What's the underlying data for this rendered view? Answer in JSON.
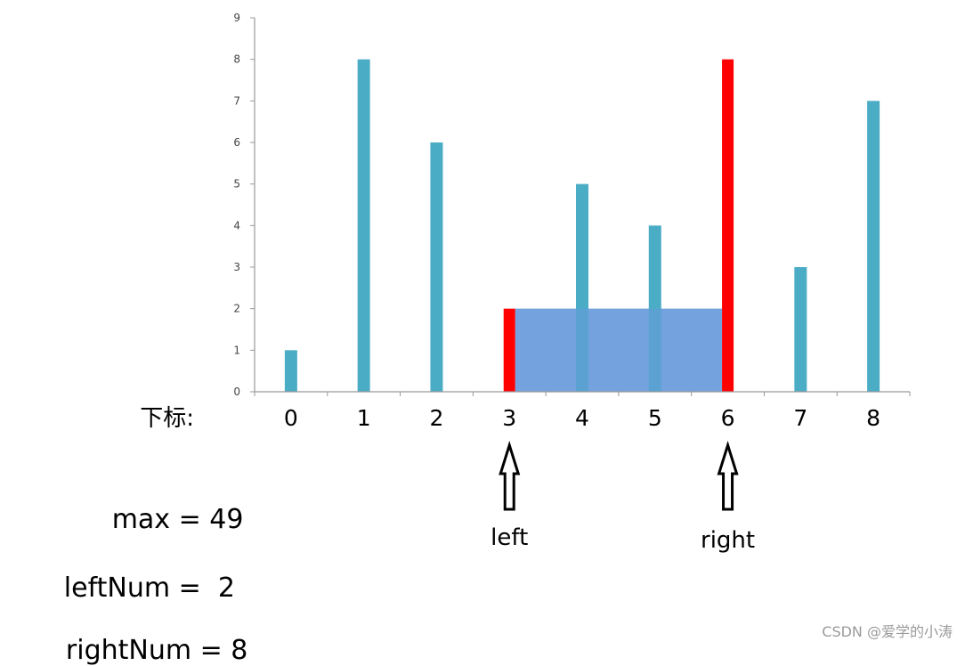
{
  "chart_data": {
    "type": "bar",
    "categories": [
      "0",
      "1",
      "2",
      "3",
      "4",
      "5",
      "6",
      "7",
      "8"
    ],
    "values": [
      1,
      8,
      6,
      2,
      5,
      4,
      8,
      3,
      7
    ],
    "highlighted_indices": [
      3,
      6
    ],
    "area": {
      "from_index": 3,
      "to_index": 6,
      "height": 2
    },
    "ylim": [
      0,
      9
    ],
    "yticks": [
      "0",
      "1",
      "2",
      "3",
      "4",
      "5",
      "6",
      "7",
      "8",
      "9"
    ],
    "xlabel": "下标:",
    "ylabel": "",
    "title": "",
    "grid": false,
    "colors": {
      "bar": "#4BACC6",
      "highlight": "#FF0000",
      "area": "#6A9BDC"
    }
  },
  "markers": [
    {
      "index": 3,
      "label": "left"
    },
    {
      "index": 6,
      "label": "right"
    }
  ],
  "stats": [
    {
      "label": "max",
      "value": "49"
    },
    {
      "label": "leftNum",
      "value": "2"
    },
    {
      "label": "rightNum",
      "value": "8"
    }
  ],
  "watermark": "CSDN @爱学的小涛"
}
